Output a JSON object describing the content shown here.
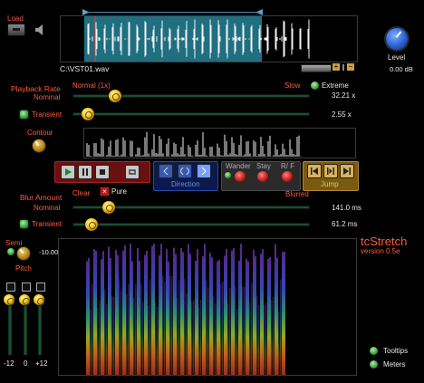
{
  "load": {
    "label": "Load"
  },
  "file": {
    "path": "C:\\VST01.wav"
  },
  "level": {
    "label": "Level",
    "value": "0.00 dB"
  },
  "playback": {
    "title": "Playback  Rate",
    "nominal_label": "Nominal",
    "mode_label": "Normal (1x)",
    "slow_label": "Slow",
    "extreme_label": "Extreme",
    "nominal_value": "32.21 x",
    "transient_label": "Transient",
    "transient_value": "2.55 x"
  },
  "contour": {
    "label": "Contour"
  },
  "transport": {
    "direction_label": "Direction",
    "wander_label": "Wander",
    "stay_label": "Stay",
    "rf_label": "R/ F",
    "jump_label": "Jump"
  },
  "blur": {
    "title": "Blur Amount",
    "clear_label": "Clear",
    "pure_label": "Pure",
    "blurred_label": "Blurred",
    "nominal_label": "Nominal",
    "nominal_value": "141.0 ms",
    "transient_label": "Transient",
    "transient_value": "61.2 ms"
  },
  "pitch": {
    "semi_label": "Semi",
    "pitch_label": "Pitch",
    "value": "-10.00",
    "scale": [
      "-12",
      "0",
      "+12"
    ]
  },
  "brand": {
    "name": "tcStretch",
    "version": "version  0.5e"
  },
  "options": {
    "tooltips_label": "Tooltips",
    "meters_label": "Meters"
  },
  "colors": {
    "accent_red": "#ff5a3c",
    "led_green": "#3aa040",
    "knob_yellow": "#f0c020",
    "waveform_selection": "#1f6f80"
  }
}
